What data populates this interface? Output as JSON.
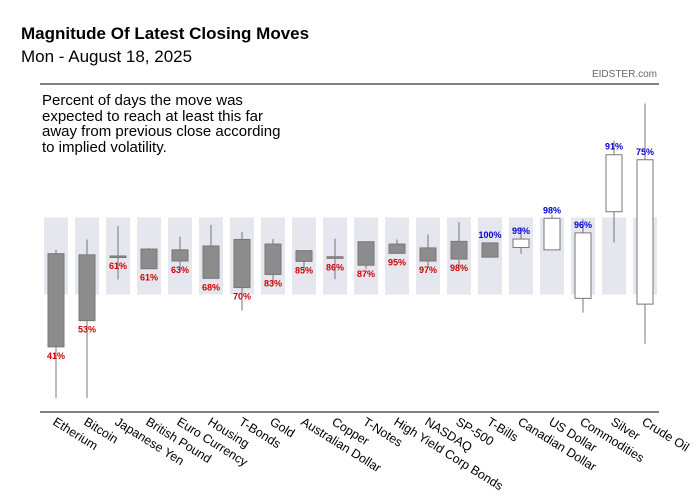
{
  "header": {
    "title": "Magnitude Of Latest Closing Moves",
    "subtitle": "Mon - August 18, 2025",
    "source": "EIDSTER.com",
    "note": "Percent of days the move was expected to reach at least this far away from previous close according to implied volatility."
  },
  "chart_data": {
    "type": "candlestick",
    "title": "Magnitude Of Latest Closing Moves",
    "subtitle": "Mon - August 18, 2025",
    "ylim": [
      -3.2,
      4.2
    ],
    "grid": false,
    "legend": "none",
    "colors": {
      "down": "#8c8c8c",
      "up": "#ffffff",
      "outline": "#777777",
      "band": "#e6e6ee",
      "red_label": "#cc0000",
      "blue_label": "#0000cc"
    },
    "series": [
      {
        "category": "Etherium",
        "open": 0.06,
        "close": -2.36,
        "high": 0.16,
        "low": -3.69,
        "band": 1,
        "pct_label": "41%",
        "label_color": "red"
      },
      {
        "category": "Bitcoin",
        "open": 0.03,
        "close": -1.68,
        "high": 0.43,
        "low": -3.69,
        "band": 1,
        "pct_label": "53%",
        "label_color": "red"
      },
      {
        "category": "Japanese Yen",
        "open": 0.0,
        "close": -0.03,
        "high": 0.78,
        "low": -0.61,
        "band": 1,
        "pct_label": "61%",
        "label_color": "red"
      },
      {
        "category": "British Pound",
        "open": 0.18,
        "close": -0.33,
        "high": 0.21,
        "low": -0.33,
        "band": 1,
        "pct_label": "61%",
        "label_color": "red"
      },
      {
        "category": "Euro Currency",
        "open": 0.16,
        "close": -0.13,
        "high": 0.5,
        "low": -0.38,
        "band": 1,
        "pct_label": "63%",
        "label_color": "red"
      },
      {
        "category": "Housing",
        "open": 0.26,
        "close": -0.58,
        "high": 0.81,
        "low": -0.58,
        "band": 1,
        "pct_label": "68%",
        "label_color": "red"
      },
      {
        "category": "T-Bonds",
        "open": 0.43,
        "close": -0.82,
        "high": 0.63,
        "low": -1.42,
        "band": 1,
        "pct_label": "70%",
        "label_color": "red"
      },
      {
        "category": "Gold",
        "open": 0.31,
        "close": -0.48,
        "high": 0.44,
        "low": -0.75,
        "band": 1,
        "pct_label": "83%",
        "label_color": "red"
      },
      {
        "category": "Australian Dollar",
        "open": 0.14,
        "close": -0.14,
        "high": 0.14,
        "low": -0.34,
        "band": 1,
        "pct_label": "85%",
        "label_color": "red"
      },
      {
        "category": "Copper",
        "open": -0.02,
        "close": -0.06,
        "high": 0.45,
        "low": -0.6,
        "band": 1,
        "pct_label": "86%",
        "label_color": "red"
      },
      {
        "category": "T-Notes",
        "open": 0.37,
        "close": -0.24,
        "high": 0.37,
        "low": -0.33,
        "band": 1,
        "pct_label": "87%",
        "label_color": "red"
      },
      {
        "category": "High Yield Corp Bonds",
        "open": 0.31,
        "close": 0.07,
        "high": 0.43,
        "low": 0.06,
        "band": 1,
        "pct_label": "95%",
        "label_color": "red"
      },
      {
        "category": "NASDAQ",
        "open": 0.21,
        "close": -0.13,
        "high": 0.56,
        "low": -0.29,
        "band": 1,
        "pct_label": "97%",
        "label_color": "red"
      },
      {
        "category": "SP-500",
        "open": 0.38,
        "close": -0.08,
        "high": 0.88,
        "low": -0.28,
        "band": 1,
        "pct_label": "98%",
        "label_color": "red"
      },
      {
        "category": "T-Bills",
        "open": 0.34,
        "close": -0.03,
        "high": 0.34,
        "low": -0.03,
        "band": 1,
        "pct_label": "100%",
        "label_color": "blue"
      },
      {
        "category": "Canadian Dollar",
        "open": 0.22,
        "close": 0.44,
        "high": 0.75,
        "low": 0.06,
        "band": 1,
        "pct_label": "99%",
        "label_color": "blue"
      },
      {
        "category": "US Dollar",
        "open": 0.16,
        "close": 0.98,
        "high": 1.07,
        "low": 0.15,
        "band": 1,
        "pct_label": "98%",
        "label_color": "blue"
      },
      {
        "category": "Commodities",
        "open": -1.1,
        "close": 0.6,
        "high": 0.95,
        "low": -1.47,
        "band": 1,
        "pct_label": "96%",
        "label_color": "blue"
      },
      {
        "category": "Silver",
        "open": 1.15,
        "close": 2.63,
        "high": 3.0,
        "low": 0.35,
        "band": 1,
        "pct_label": "91%",
        "label_color": "blue"
      },
      {
        "category": "Crude Oil",
        "open": -1.25,
        "close": 2.5,
        "high": 3.96,
        "low": -2.28,
        "band": 1,
        "pct_label": "75%",
        "label_color": "blue"
      }
    ]
  }
}
